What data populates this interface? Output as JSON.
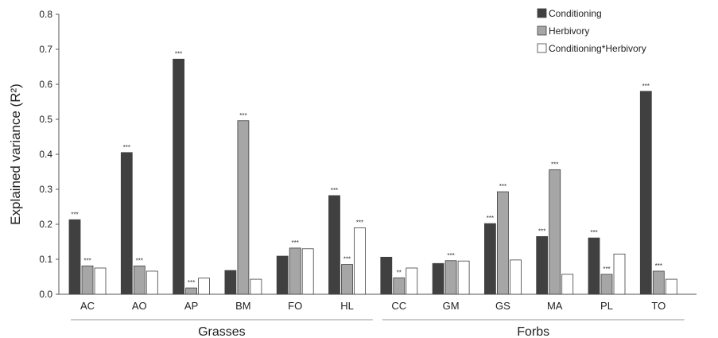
{
  "chart_data": {
    "type": "bar",
    "title": "",
    "xlabel": "",
    "ylabel": "Explained variance (R²)",
    "ylim": [
      0,
      0.8
    ],
    "yticks": [
      "0.0",
      "0.1",
      "0.2",
      "0.3",
      "0.4",
      "0.5",
      "0.6",
      "0.7",
      "0.8"
    ],
    "categories": [
      "AC",
      "AO",
      "AP",
      "BM",
      "FO",
      "HL",
      "CC",
      "GM",
      "GS",
      "MA",
      "PL",
      "TO"
    ],
    "groups": [
      {
        "label": "Grasses",
        "categories": [
          "AC",
          "AO",
          "AP",
          "BM",
          "FO",
          "HL"
        ]
      },
      {
        "label": "Forbs",
        "categories": [
          "CC",
          "GM",
          "GS",
          "MA",
          "PL",
          "TO"
        ]
      }
    ],
    "series": [
      {
        "name": "Conditioning",
        "color": "#404040",
        "values": [
          0.213,
          0.405,
          0.672,
          0.068,
          0.109,
          0.282,
          0.106,
          0.088,
          0.202,
          0.165,
          0.161,
          0.58
        ],
        "significance": [
          "***",
          "***",
          "***",
          "",
          "",
          "***",
          "",
          "",
          "***",
          "***",
          "***",
          "***"
        ]
      },
      {
        "name": "Herbivory",
        "color": "#a6a6a6",
        "values": [
          0.081,
          0.081,
          0.018,
          0.496,
          0.132,
          0.085,
          0.047,
          0.096,
          0.293,
          0.356,
          0.057,
          0.066
        ],
        "significance": [
          "***",
          "***",
          "***",
          "***",
          "***",
          "***",
          "**",
          "***",
          "***",
          "***",
          "***",
          "***"
        ]
      },
      {
        "name": "Conditioning*Herbivory",
        "color": "#ffffff",
        "values": [
          0.075,
          0.066,
          0.046,
          0.043,
          0.13,
          0.19,
          0.075,
          0.095,
          0.098,
          0.057,
          0.115,
          0.043
        ],
        "significance": [
          "",
          "",
          "",
          "",
          "",
          "***",
          "",
          "",
          "",
          "",
          "",
          ""
        ]
      }
    ],
    "legend": "top-right",
    "grid": false
  }
}
